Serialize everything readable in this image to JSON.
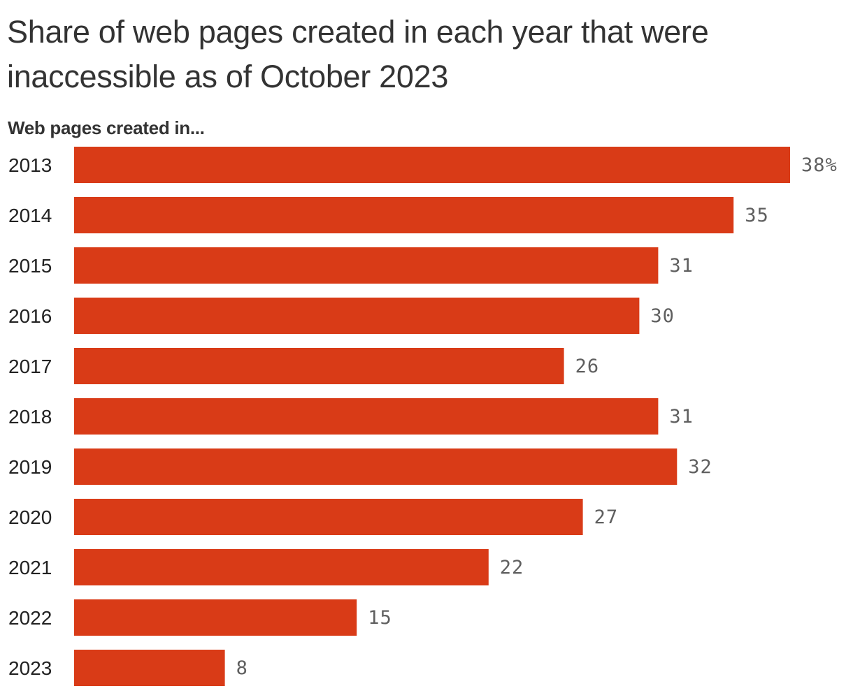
{
  "chart_data": {
    "type": "bar",
    "orientation": "horizontal",
    "title": "Share of web pages created in each year that were inaccessible as of October 2023",
    "subtitle": "Web pages created in...",
    "categories": [
      "2013",
      "2014",
      "2015",
      "2016",
      "2017",
      "2018",
      "2019",
      "2020",
      "2021",
      "2022",
      "2023"
    ],
    "values": [
      38,
      35,
      31,
      30,
      26,
      31,
      32,
      27,
      22,
      15,
      8
    ],
    "value_labels": [
      "38%",
      "35",
      "31",
      "30",
      "26",
      "31",
      "32",
      "27",
      "22",
      "15",
      "8"
    ],
    "xlim": [
      0,
      38
    ],
    "xlabel": "",
    "ylabel": "",
    "grid": false,
    "legend": "none",
    "bar_color": "#d93b17"
  }
}
